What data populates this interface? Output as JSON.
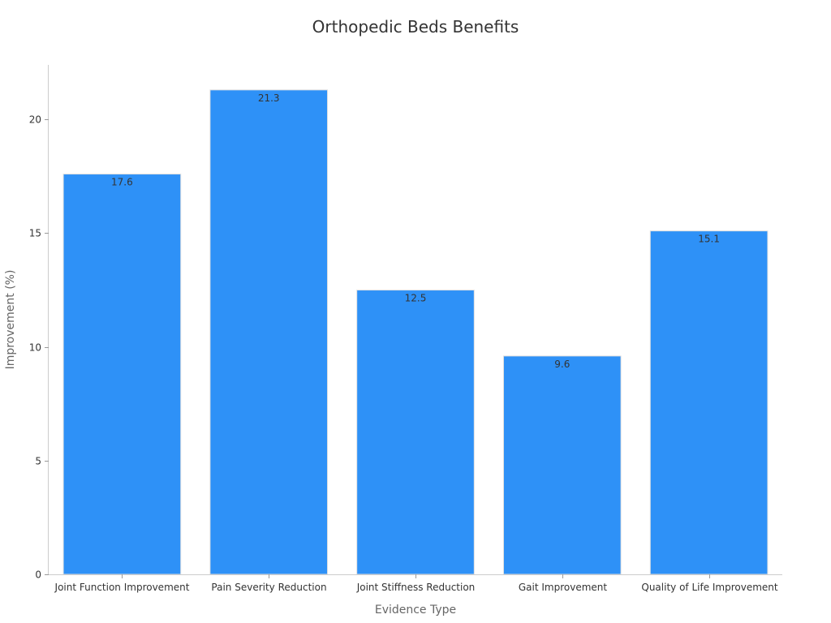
{
  "chart_data": {
    "type": "bar",
    "title": "Orthopedic Beds Benefits",
    "xlabel": "Evidence Type",
    "ylabel": "Improvement (%)",
    "categories": [
      "Joint Function Improvement",
      "Pain Severity Reduction",
      "Joint Stiffness Reduction",
      "Gait Improvement",
      "Quality of Life Improvement"
    ],
    "values": [
      17.6,
      21.3,
      12.5,
      9.6,
      15.1
    ],
    "value_labels": [
      "17.6",
      "21.3",
      "12.5",
      "9.6",
      "15.1"
    ],
    "ylim": [
      0,
      22.4
    ],
    "yticks": [
      0,
      5,
      10,
      15,
      20
    ],
    "ytick_labels": [
      "0",
      "5",
      "10",
      "15",
      "20"
    ],
    "grid": false,
    "bar_color": "#2e91f7"
  }
}
